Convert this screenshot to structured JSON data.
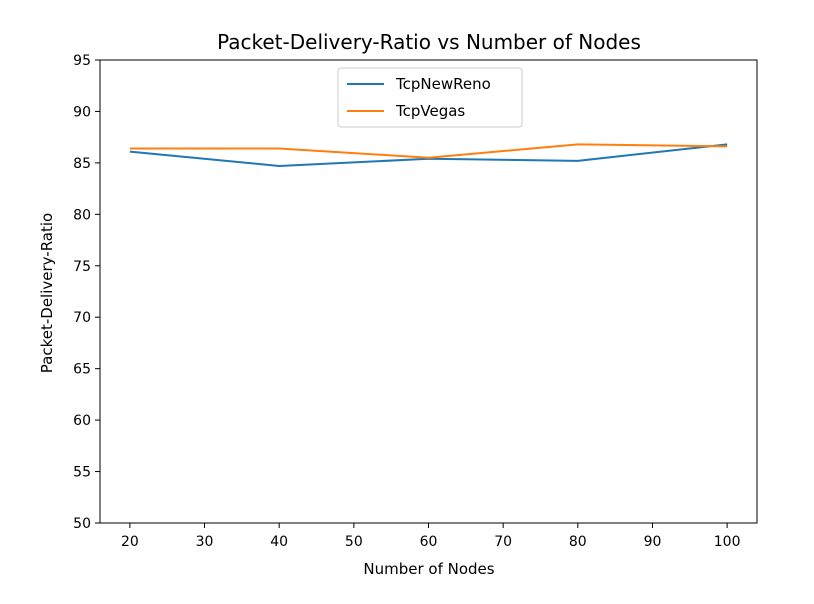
{
  "chart_data": {
    "type": "line",
    "title": "Packet-Delivery-Ratio vs Number of Nodes",
    "xlabel": "Number of Nodes",
    "ylabel": "Packet-Delivery-Ratio",
    "xlim": [
      16,
      104
    ],
    "ylim": [
      50,
      95
    ],
    "xticks": [
      20,
      30,
      40,
      50,
      60,
      70,
      80,
      90,
      100
    ],
    "yticks": [
      50,
      55,
      60,
      65,
      70,
      75,
      80,
      85,
      90,
      95
    ],
    "grid": false,
    "legend_position": "top-center",
    "x": [
      20,
      40,
      60,
      80,
      100
    ],
    "series": [
      {
        "name": "TcpNewReno",
        "color": "#1f77b4",
        "values": [
          86.1,
          84.7,
          85.4,
          85.2,
          86.8
        ]
      },
      {
        "name": "TcpVegas",
        "color": "#ff7f0e",
        "values": [
          86.4,
          86.4,
          85.5,
          86.8,
          86.6
        ]
      }
    ]
  }
}
